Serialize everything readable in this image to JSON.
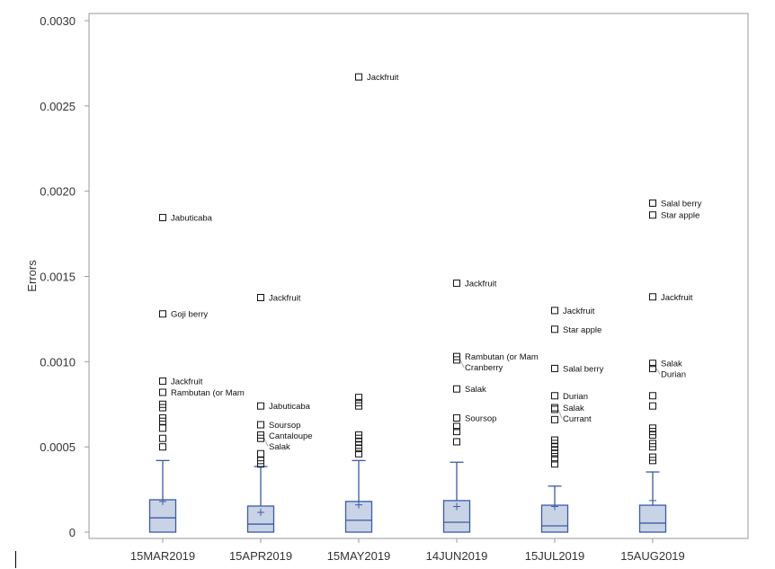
{
  "chart_data": {
    "type": "boxplot",
    "ylabel": "Errors",
    "xlabel": "",
    "ylim": [
      0,
      0.003
    ],
    "yticks": [
      "0",
      "0.0005",
      "0.0010",
      "0.0015",
      "0.0020",
      "0.0025",
      "0.0030"
    ],
    "grid": false,
    "colors": {
      "box_fill": "#c9d3e6",
      "box_stroke": "#3a5ba8",
      "outlier": "#111111",
      "frame": "#999999"
    },
    "categories": [
      "15MAR2019",
      "15APR2019",
      "15MAY2019",
      "14JUN2019",
      "15JUL2019",
      "15AUG2019"
    ],
    "groups": [
      {
        "category": "15MAR2019",
        "min": 0,
        "q1": 0,
        "median": 8.4e-05,
        "q3": 0.00019,
        "whisker_high": 0.00042,
        "mean": 0.00018,
        "outliers": [
          {
            "value": 0.001845,
            "label": "Jabuticaba"
          },
          {
            "value": 0.00128,
            "label": "Goji berry"
          },
          {
            "value": 0.000886,
            "label": "Jackfruit"
          },
          {
            "value": 0.00082,
            "label": "Rambutan (or Mam"
          },
          {
            "value": 0.00075
          },
          {
            "value": 0.00073
          },
          {
            "value": 0.00067
          },
          {
            "value": 0.00065
          },
          {
            "value": 0.00061
          },
          {
            "value": 0.00055
          },
          {
            "value": 0.0005
          }
        ]
      },
      {
        "category": "15APR2019",
        "min": 0,
        "q1": 0,
        "median": 4.7e-05,
        "q3": 0.000153,
        "whisker_high": 0.000385,
        "mean": 0.000116,
        "outliers": [
          {
            "value": 0.001376,
            "label": "Jackfruit"
          },
          {
            "value": 0.00074,
            "label": "Jabuticaba"
          },
          {
            "value": 0.00063,
            "label": "Soursop"
          },
          {
            "value": 0.00057,
            "label": "Cantaloupe"
          },
          {
            "value": 0.00055,
            "label": "Salak"
          },
          {
            "value": 0.00046
          },
          {
            "value": 0.00042
          },
          {
            "value": 0.0004
          }
        ]
      },
      {
        "category": "15MAY2019",
        "min": 0,
        "q1": 0,
        "median": 7e-05,
        "q3": 0.00018,
        "whisker_high": 0.00042,
        "mean": 0.00016,
        "outliers": [
          {
            "value": 0.00267,
            "label": "Jackfruit"
          },
          {
            "value": 0.00079
          },
          {
            "value": 0.00076
          },
          {
            "value": 0.00074
          },
          {
            "value": 0.00057
          },
          {
            "value": 0.00055
          },
          {
            "value": 0.00053
          },
          {
            "value": 0.00051
          },
          {
            "value": 0.00049
          },
          {
            "value": 0.00046
          }
        ]
      },
      {
        "category": "14JUN2019",
        "min": 0,
        "q1": 0,
        "median": 5.8e-05,
        "q3": 0.000185,
        "whisker_high": 0.00041,
        "mean": 0.00015,
        "outliers": [
          {
            "value": 0.00146,
            "label": "Jackfruit"
          },
          {
            "value": 0.00103,
            "label": "Rambutan (or Mam"
          },
          {
            "value": 0.00101,
            "label": "Cranberry"
          },
          {
            "value": 0.00084,
            "label": "Salak"
          },
          {
            "value": 0.00067,
            "label": "Soursop"
          },
          {
            "value": 0.00062
          },
          {
            "value": 0.00059
          },
          {
            "value": 0.00053
          }
        ]
      },
      {
        "category": "15JUL2019",
        "min": 0,
        "q1": 0,
        "median": 3.7e-05,
        "q3": 0.000158,
        "whisker_high": 0.00027,
        "mean": 0.00015,
        "outliers": [
          {
            "value": 0.0013,
            "label": "Jackfruit"
          },
          {
            "value": 0.00119,
            "label": "Star apple"
          },
          {
            "value": 0.00096,
            "label": "Salal berry"
          },
          {
            "value": 0.0008,
            "label": "Durian"
          },
          {
            "value": 0.00073,
            "label": "Salak"
          },
          {
            "value": 0.00072,
            "label": "Currant"
          },
          {
            "value": 0.00066
          },
          {
            "value": 0.00054
          },
          {
            "value": 0.00052
          },
          {
            "value": 0.0005
          },
          {
            "value": 0.00048
          },
          {
            "value": 0.00046
          },
          {
            "value": 0.00043
          },
          {
            "value": 0.0004
          }
        ]
      },
      {
        "category": "15AUG2019",
        "min": 0,
        "q1": 0,
        "median": 5.3e-05,
        "q3": 0.000158,
        "whisker_high": 0.000353,
        "mean": 0.000185,
        "outliers": [
          {
            "value": 0.00193,
            "label": "Salal berry"
          },
          {
            "value": 0.00186,
            "label": "Star apple"
          },
          {
            "value": 0.00138,
            "label": "Jackfruit"
          },
          {
            "value": 0.00099,
            "label": "Salak"
          },
          {
            "value": 0.00096,
            "label": "Durian"
          },
          {
            "value": 0.0008
          },
          {
            "value": 0.00074
          },
          {
            "value": 0.00061
          },
          {
            "value": 0.00059
          },
          {
            "value": 0.00057
          },
          {
            "value": 0.00052
          },
          {
            "value": 0.0005
          },
          {
            "value": 0.00044
          },
          {
            "value": 0.00042
          }
        ]
      }
    ]
  }
}
